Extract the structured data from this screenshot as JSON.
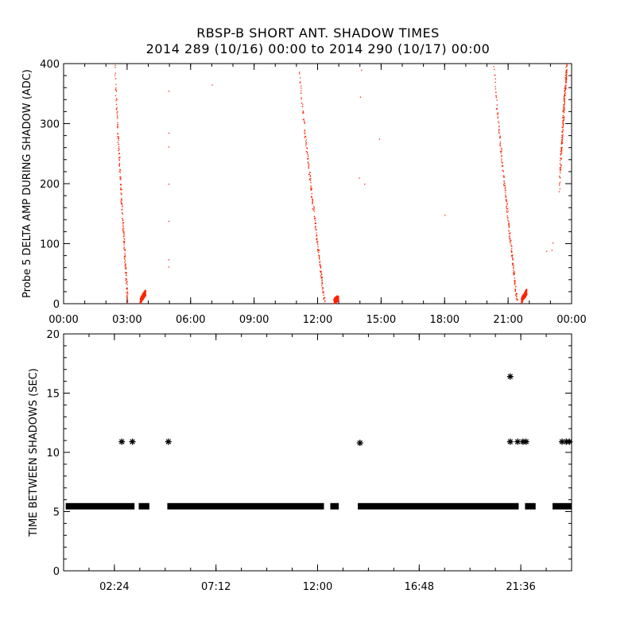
{
  "header": {
    "title_line1": "RBSP-B SHORT ANT. SHADOW TIMES",
    "title_line2": "2014 289 (10/16) 00:00 to 2014 290 (10/17) 00:00"
  },
  "colors": {
    "panel1_points": "#ff2200",
    "panel2_points": "#000000"
  },
  "chart_data": [
    {
      "type": "scatter",
      "title": "",
      "xlabel": "",
      "ylabel": "Probe 5 DELTA AMP DURING SHADOW (ADC)",
      "xlim_hours": [
        0,
        24
      ],
      "ylim": [
        0,
        400
      ],
      "x_ticks": [
        "00:00",
        "03:00",
        "06:00",
        "09:00",
        "12:00",
        "15:00",
        "18:00",
        "21:00",
        "00:00"
      ],
      "y_ticks": [
        "0",
        "100",
        "200",
        "300",
        "400"
      ],
      "clusters": [
        {
          "name": "",
          "x_start_hour": 2.4,
          "x_end_hour": 3.0,
          "y_start": 400,
          "y_end": 5
        },
        {
          "name": "",
          "x_start_hour": 3.6,
          "x_end_hour": 3.85,
          "y_start": 5,
          "y_end": 20
        },
        {
          "name": "",
          "x_start_hour": 11.1,
          "x_end_hour": 12.3,
          "y_start": 400,
          "y_end": 5
        },
        {
          "name": "",
          "x_start_hour": 12.75,
          "x_end_hour": 12.95,
          "y_start": 5,
          "y_end": 10
        },
        {
          "name": "",
          "x_start_hour": 20.3,
          "x_end_hour": 21.4,
          "y_start": 400,
          "y_end": 5
        },
        {
          "name": "",
          "x_start_hour": 21.6,
          "x_end_hour": 21.85,
          "y_start": 5,
          "y_end": 20
        },
        {
          "name": "",
          "x_start_hour": 23.4,
          "x_end_hour": 23.75,
          "y_start": 190,
          "y_end": 400
        }
      ],
      "isolated_points": [
        [
          4.95,
          355
        ],
        [
          4.95,
          285
        ],
        [
          4.95,
          262
        ],
        [
          4.95,
          200
        ],
        [
          4.95,
          138
        ],
        [
          4.95,
          74
        ],
        [
          4.95,
          62
        ],
        [
          7.0,
          365
        ],
        [
          14.0,
          345
        ],
        [
          14.05,
          390
        ],
        [
          13.95,
          210
        ],
        [
          14.2,
          200
        ],
        [
          14.9,
          275
        ],
        [
          18.0,
          148
        ],
        [
          22.8,
          88
        ],
        [
          23.05,
          90
        ],
        [
          23.1,
          102
        ]
      ]
    },
    {
      "type": "scatter",
      "title": "",
      "xlabel": "",
      "ylabel": "TIME BETWEEN SHADOWS (SEC)",
      "xlim_hours": [
        0,
        24
      ],
      "ylim": [
        0,
        20
      ],
      "x_ticks": [
        "02:24",
        "07:12",
        "12:00",
        "16:48",
        "21:36"
      ],
      "y_ticks": [
        "0",
        "5",
        "10",
        "15",
        "20"
      ],
      "baseline_value": 5.45,
      "baseline_segments_hours": [
        [
          0.1,
          3.35
        ],
        [
          3.55,
          4.05
        ],
        [
          4.9,
          12.3
        ],
        [
          12.6,
          13.0
        ],
        [
          13.9,
          21.5
        ],
        [
          21.8,
          22.3
        ],
        [
          23.1,
          24.0
        ]
      ],
      "points": [
        [
          2.75,
          10.9
        ],
        [
          3.25,
          10.9
        ],
        [
          4.95,
          10.9
        ],
        [
          14.0,
          10.8
        ],
        [
          21.1,
          16.4
        ],
        [
          21.1,
          10.9
        ],
        [
          21.45,
          10.9
        ],
        [
          21.7,
          10.9
        ],
        [
          21.85,
          10.9
        ],
        [
          23.55,
          10.9
        ],
        [
          23.75,
          10.9
        ],
        [
          23.9,
          10.9
        ]
      ]
    }
  ]
}
